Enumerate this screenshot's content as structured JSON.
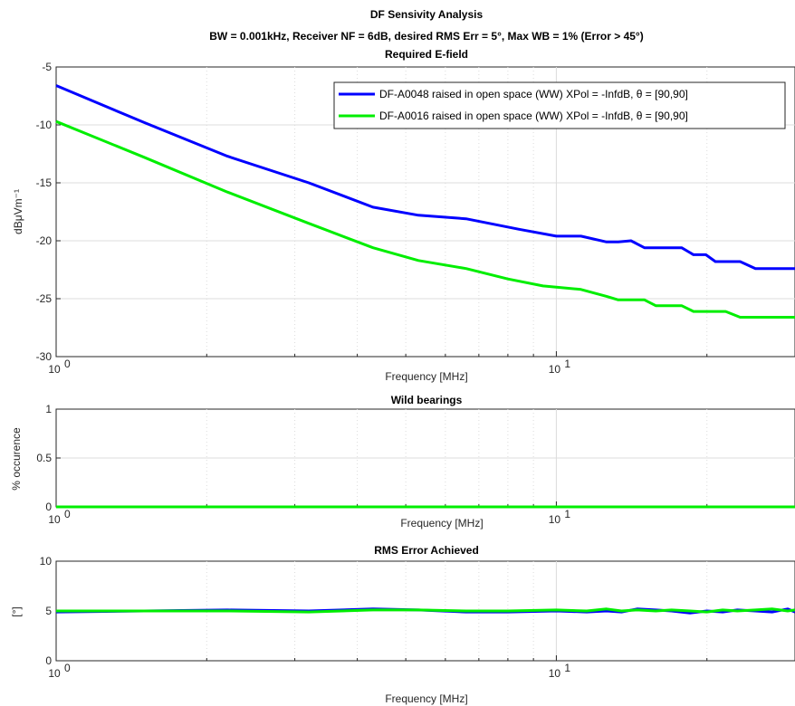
{
  "chart_data": [
    {
      "type": "line",
      "title": "DF Sensivity Analysis",
      "subtitle": "BW = 0.001kHz, Receiver NF = 6dB, desired RMS Err = 5°, Max WB = 1% (Error > 45°)",
      "panel_title": "Required E-field",
      "xlabel": "Frequency [MHz]",
      "ylabel": "dBμVm⁻¹",
      "xscale": "log",
      "xlim": [
        1,
        30
      ],
      "ylim": [
        -30,
        -5
      ],
      "yticks": [
        -30,
        -25,
        -20,
        -15,
        -10,
        -5
      ],
      "xtick_labels": [
        {
          "base": "10",
          "exp": "0",
          "x": 1
        },
        {
          "base": "10",
          "exp": "1",
          "x": 10
        }
      ],
      "grid": true,
      "legend_position": "top-right",
      "series": [
        {
          "name": "DF-A0048 raised in open space (WW) XPol = -InfdB, θ = [90,90]",
          "color": "#0000ff",
          "x": [
            1,
            1.5,
            2.2,
            3.2,
            4.3,
            5.3,
            6.6,
            8.4,
            10.0,
            11.2,
            12.6,
            13.3,
            14.1,
            15.0,
            15.8,
            17.8,
            18.8,
            19.9,
            20.8,
            21.8,
            23.3,
            25.0,
            26.6,
            27.7,
            30.0
          ],
          "y": [
            -6.6,
            -9.8,
            -12.7,
            -15.0,
            -17.1,
            -17.8,
            -18.1,
            -19.0,
            -19.6,
            -19.6,
            -20.1,
            -20.1,
            -20.0,
            -20.6,
            -20.6,
            -20.6,
            -21.2,
            -21.2,
            -21.8,
            -21.8,
            -21.8,
            -22.4,
            -22.4,
            -22.4,
            -22.4
          ]
        },
        {
          "name": "DF-A0016 raised in open space (WW) XPol = -InfdB, θ = [90,90]",
          "color": "#00ee00",
          "x": [
            1,
            1.5,
            2.2,
            3.2,
            4.3,
            5.3,
            6.6,
            8.0,
            9.4,
            10.0,
            11.2,
            12.6,
            13.3,
            14.1,
            15.0,
            15.8,
            17.8,
            18.8,
            19.9,
            20.8,
            21.8,
            23.3,
            25.0,
            27.0,
            30.0
          ],
          "y": [
            -9.7,
            -12.8,
            -15.8,
            -18.5,
            -20.6,
            -21.7,
            -22.4,
            -23.3,
            -23.9,
            -24.0,
            -24.2,
            -24.8,
            -25.1,
            -25.1,
            -25.1,
            -25.6,
            -25.6,
            -26.1,
            -26.1,
            -26.1,
            -26.1,
            -26.6,
            -26.6,
            -26.6,
            -26.6
          ]
        }
      ]
    },
    {
      "type": "line",
      "title": "Wild bearings",
      "xlabel": "Frequency [MHz]",
      "ylabel": "% occurence",
      "xscale": "log",
      "xlim": [
        1,
        30
      ],
      "ylim": [
        0,
        1
      ],
      "yticks": [
        0,
        0.5,
        1
      ],
      "xtick_labels": [
        {
          "base": "10",
          "exp": "0",
          "x": 1
        },
        {
          "base": "10",
          "exp": "1",
          "x": 10
        }
      ],
      "grid": true,
      "series": [
        {
          "color": "#0000ff",
          "x": [
            1,
            30
          ],
          "y": [
            0,
            0
          ]
        },
        {
          "color": "#00ee00",
          "x": [
            1,
            30
          ],
          "y": [
            0,
            0
          ]
        }
      ]
    },
    {
      "type": "line",
      "title": "RMS Error Achieved",
      "xlabel": "Frequency [MHz]",
      "ylabel": "[°]",
      "xscale": "log",
      "xlim": [
        1,
        30
      ],
      "ylim": [
        0,
        10
      ],
      "yticks": [
        0,
        5,
        10
      ],
      "xtick_labels": [
        {
          "base": "10",
          "exp": "0",
          "x": 1
        },
        {
          "base": "10",
          "exp": "1",
          "x": 10
        }
      ],
      "grid": true,
      "series": [
        {
          "color": "#0000ff",
          "x": [
            1,
            1.5,
            2.2,
            3.2,
            4.3,
            5.3,
            6.6,
            8.0,
            10.0,
            11.5,
            12.6,
            13.5,
            14.5,
            15.8,
            17.0,
            18.5,
            20.0,
            21.5,
            23.0,
            25.0,
            27.0,
            29.0,
            30.0
          ],
          "y": [
            4.9,
            5.0,
            5.1,
            5.0,
            5.2,
            5.1,
            4.9,
            4.9,
            5.0,
            4.9,
            5.0,
            4.9,
            5.2,
            5.1,
            5.0,
            4.8,
            5.0,
            4.9,
            5.1,
            5.0,
            4.9,
            5.2,
            4.9
          ]
        },
        {
          "color": "#00ee00",
          "x": [
            1,
            1.5,
            2.2,
            3.2,
            4.3,
            5.3,
            6.6,
            8.0,
            10.0,
            11.5,
            12.6,
            13.5,
            14.5,
            15.8,
            17.0,
            18.5,
            20.0,
            21.5,
            23.0,
            25.0,
            27.0,
            29.0,
            30.0
          ],
          "y": [
            5.0,
            5.0,
            5.0,
            4.9,
            5.1,
            5.1,
            5.0,
            5.0,
            5.1,
            5.0,
            5.2,
            5.0,
            5.1,
            5.0,
            5.1,
            5.0,
            4.9,
            5.1,
            5.0,
            5.1,
            5.2,
            5.0,
            5.1
          ]
        }
      ]
    }
  ]
}
